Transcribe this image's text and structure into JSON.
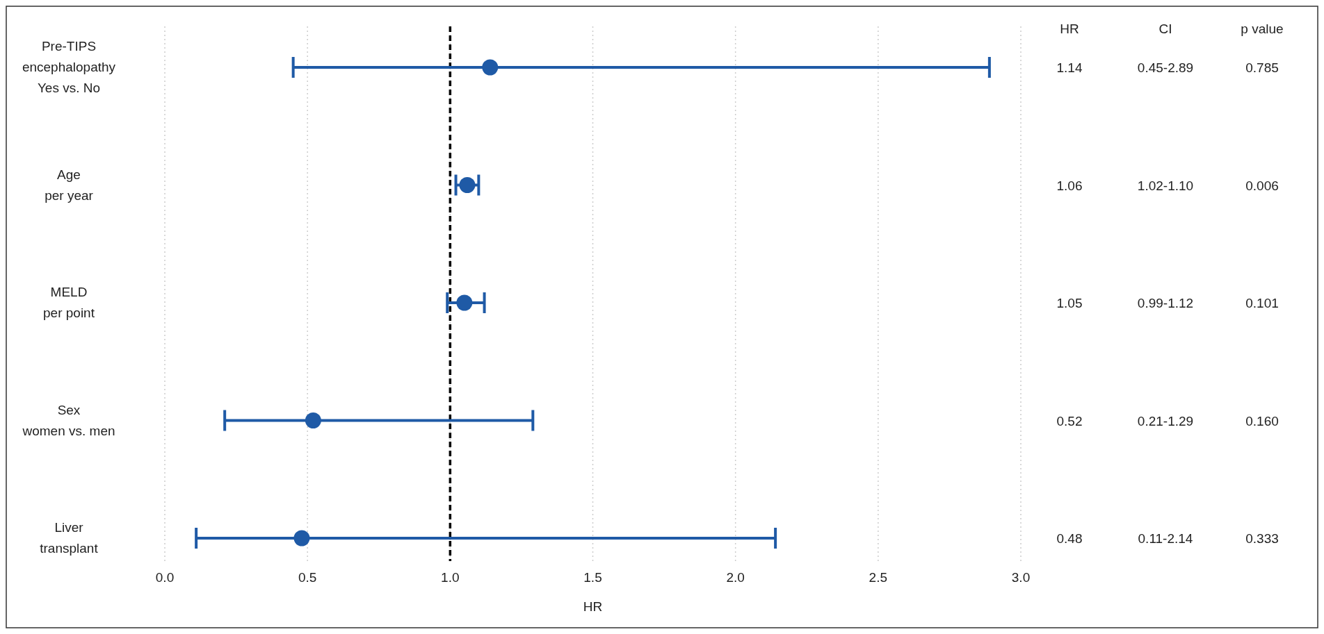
{
  "chart_data": {
    "type": "scatter",
    "orientation": "horizontal",
    "categories": [
      "Pre-TIPS\nencephalopathy\nYes vs. No",
      "Age\nper year",
      "MELD\nper point",
      "Sex\nwomen vs. men",
      "Liver\ntransplant"
    ],
    "values": [
      1.14,
      1.06,
      1.05,
      0.52,
      0.48
    ],
    "errors": [
      [
        0.45,
        2.89
      ],
      [
        1.02,
        1.1
      ],
      [
        0.99,
        1.12
      ],
      [
        0.21,
        1.29
      ],
      [
        0.11,
        2.14
      ]
    ],
    "color": "#1f5aa6",
    "marker": "circle",
    "data_labels": true,
    "xlim": [
      0,
      3
    ],
    "xticks": [
      {
        "value": 0,
        "label": "0.0"
      },
      {
        "value": 0.5,
        "label": "0.5"
      },
      {
        "value": 1,
        "label": "1.0"
      },
      {
        "value": 1.5,
        "label": "1.5"
      },
      {
        "value": 2,
        "label": "2.0"
      },
      {
        "value": 2.5,
        "label": "2.5"
      },
      {
        "value": 3,
        "label": "3.0"
      }
    ],
    "xlabel": "HR",
    "grid": "x",
    "ref_lines": [
      {
        "axis": "x",
        "value": 1,
        "color": "#000000",
        "line_style": "dashed"
      }
    ],
    "annotations": [
      "HR",
      "CI",
      "p value",
      "0.45-2.89",
      "0.785",
      "1.02-1.10",
      "0.006",
      "0.99-1.12",
      "0.101",
      "0.21-1.29",
      "0.160",
      "0.11-2.14",
      "0.333"
    ]
  }
}
